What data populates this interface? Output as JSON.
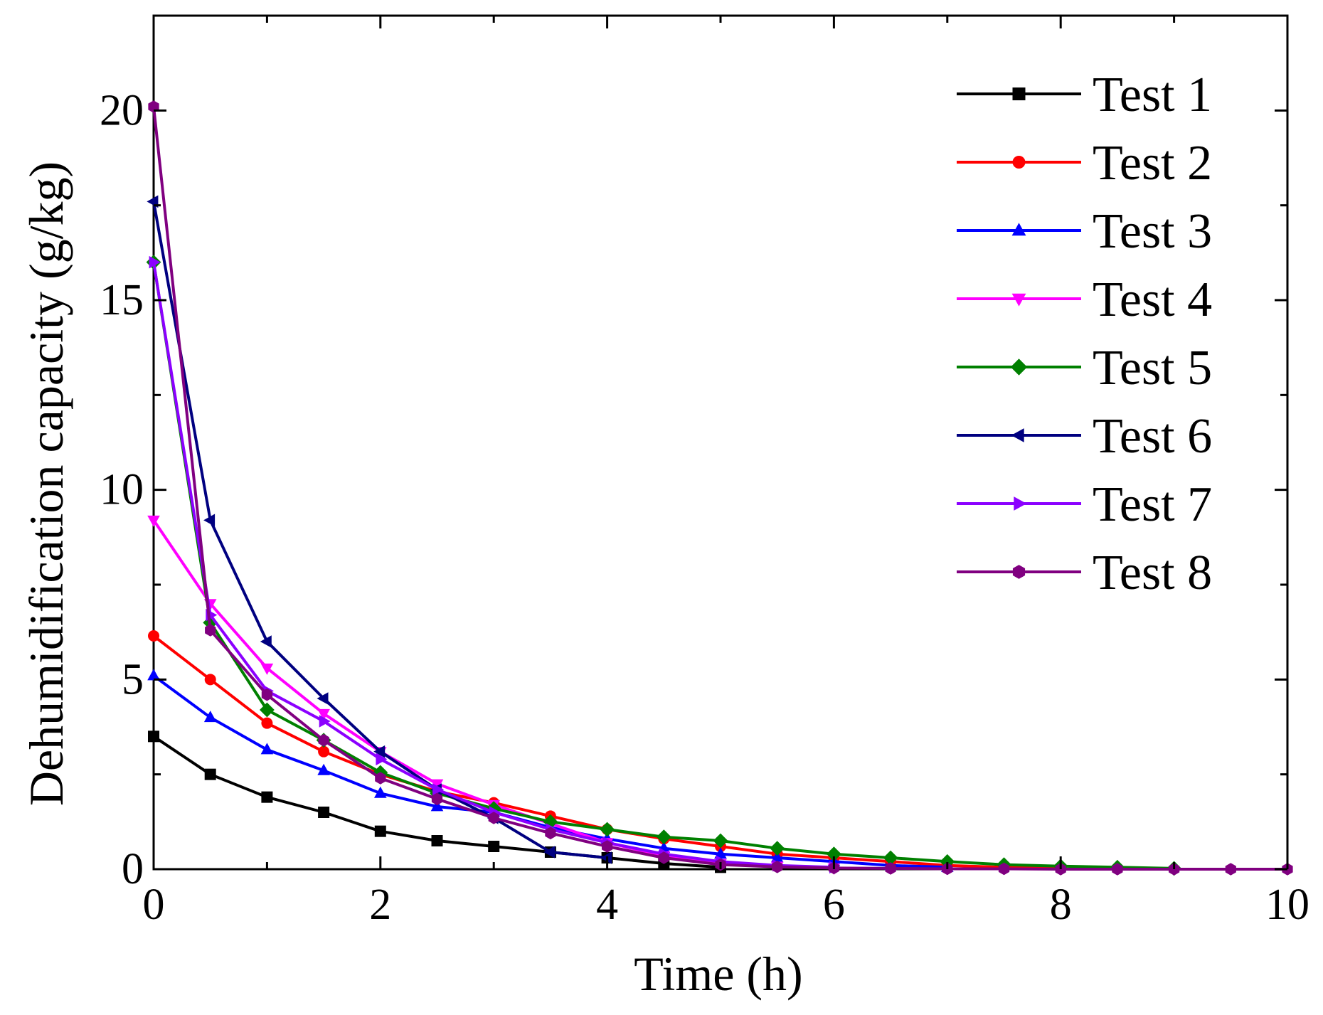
{
  "chart_data": {
    "type": "line",
    "title": "",
    "xlabel": "Time (h)",
    "ylabel": "Dehumidification capacity (g/kg)",
    "xlim": [
      0,
      10
    ],
    "ylim": [
      0,
      22.5
    ],
    "xticks": [
      0,
      2,
      4,
      6,
      8,
      10
    ],
    "xtick_labels": [
      "0",
      "2",
      "4",
      "6",
      "8",
      "10"
    ],
    "yticks": [
      0,
      5,
      10,
      15,
      20
    ],
    "ytick_labels": [
      "0",
      "5",
      "10",
      "15",
      "20"
    ],
    "grid": false,
    "legend_position": "top-right",
    "series": [
      {
        "name": "Test 1",
        "color": "#000000",
        "marker": "square",
        "x": [
          0,
          0.5,
          1,
          1.5,
          2,
          2.5,
          3,
          3.5,
          4,
          4.5,
          5
        ],
        "y": [
          3.5,
          2.5,
          1.9,
          1.5,
          1.0,
          0.75,
          0.6,
          0.45,
          0.3,
          0.15,
          0.05
        ]
      },
      {
        "name": "Test 2",
        "color": "#ff0000",
        "marker": "circle",
        "x": [
          0,
          0.5,
          1,
          1.5,
          2,
          2.5,
          3,
          3.5,
          4,
          4.5,
          5,
          5.5,
          6,
          6.5,
          7,
          7.5,
          8
        ],
        "y": [
          6.15,
          5.0,
          3.85,
          3.1,
          2.5,
          2.05,
          1.75,
          1.4,
          1.05,
          0.8,
          0.6,
          0.4,
          0.3,
          0.2,
          0.1,
          0.05,
          0.02
        ]
      },
      {
        "name": "Test 3",
        "color": "#0000ff",
        "marker": "triangle-up",
        "x": [
          0,
          0.5,
          1,
          1.5,
          2,
          2.5,
          3,
          3.5,
          4,
          4.5,
          5,
          5.5,
          6,
          6.5,
          7
        ],
        "y": [
          5.1,
          4.0,
          3.15,
          2.6,
          2.0,
          1.65,
          1.5,
          1.1,
          0.8,
          0.55,
          0.4,
          0.3,
          0.2,
          0.1,
          0.05
        ]
      },
      {
        "name": "Test 4",
        "color": "#ff00ff",
        "marker": "triangle-down",
        "x": [
          0,
          0.5,
          1,
          1.5,
          2,
          2.5,
          3,
          3.5,
          4,
          4.5,
          5,
          5.5,
          6
        ],
        "y": [
          9.2,
          7.0,
          5.3,
          4.1,
          3.1,
          2.25,
          1.7,
          1.2,
          0.7,
          0.35,
          0.15,
          0.08,
          0.03
        ]
      },
      {
        "name": "Test 5",
        "color": "#008000",
        "marker": "diamond",
        "x": [
          0,
          0.5,
          1,
          1.5,
          2,
          2.5,
          3,
          3.5,
          4,
          4.5,
          5,
          5.5,
          6,
          6.5,
          7,
          7.5,
          8,
          8.5,
          9
        ],
        "y": [
          16.0,
          6.5,
          4.2,
          3.4,
          2.55,
          2.0,
          1.6,
          1.25,
          1.05,
          0.85,
          0.75,
          0.55,
          0.4,
          0.3,
          0.2,
          0.12,
          0.08,
          0.05,
          0.02
        ]
      },
      {
        "name": "Test 6",
        "color": "#000080",
        "marker": "triangle-left",
        "x": [
          0,
          0.5,
          1,
          1.5,
          2,
          2.5,
          3,
          3.5,
          4
        ],
        "y": [
          17.6,
          9.2,
          6.0,
          4.5,
          3.1,
          2.1,
          1.35,
          0.45,
          0.3
        ]
      },
      {
        "name": "Test 7",
        "color": "#8b00ff",
        "marker": "triangle-right",
        "x": [
          0,
          0.5,
          1,
          1.5,
          2,
          2.5,
          3,
          3.5,
          4,
          4.5,
          5,
          5.5,
          6
        ],
        "y": [
          16.0,
          6.7,
          4.7,
          3.9,
          2.9,
          2.1,
          1.5,
          1.05,
          0.7,
          0.4,
          0.2,
          0.1,
          0.05
        ]
      },
      {
        "name": "Test 8",
        "color": "#800080",
        "marker": "hexagon",
        "x": [
          0,
          0.5,
          1,
          1.5,
          2,
          2.5,
          3,
          3.5,
          4,
          4.5,
          5,
          5.5,
          6,
          6.5,
          7,
          7.5,
          8,
          8.5,
          9,
          9.5,
          10
        ],
        "y": [
          20.1,
          6.3,
          4.6,
          3.4,
          2.4,
          1.85,
          1.35,
          0.95,
          0.6,
          0.3,
          0.12,
          0.06,
          0.03,
          0.02,
          0.01,
          0.01,
          0.0,
          0.0,
          0.0,
          0.0,
          0.0
        ]
      }
    ]
  }
}
